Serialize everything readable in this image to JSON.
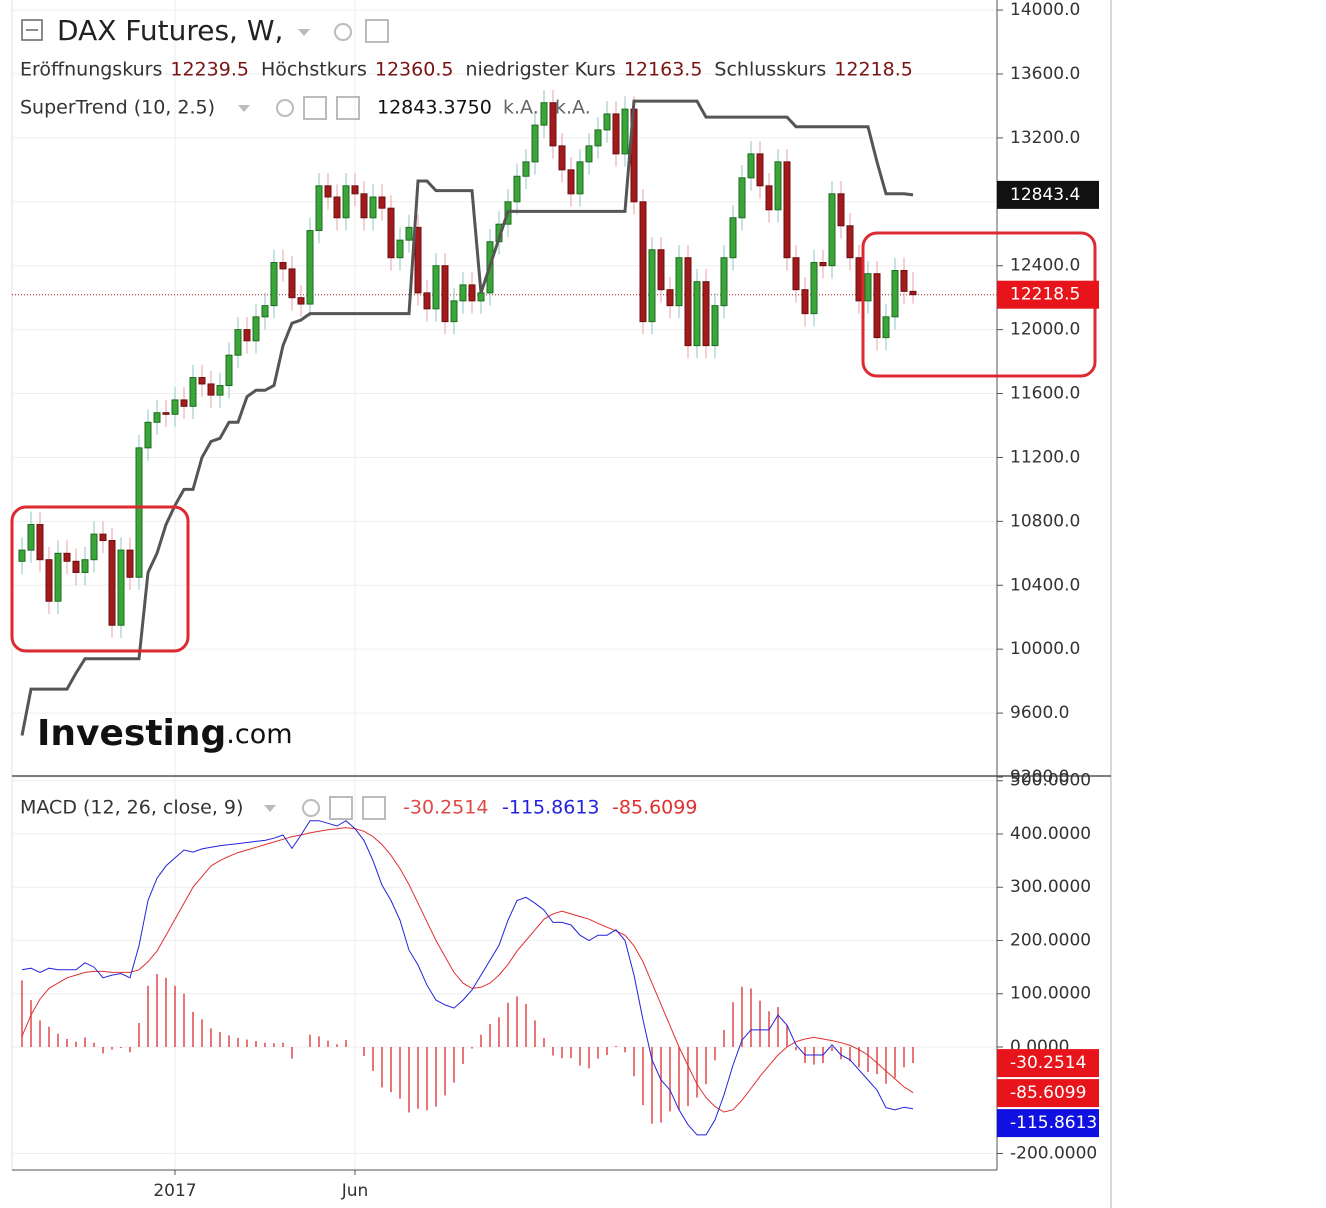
{
  "chart_data": {
    "type": "candlestick",
    "title": "DAX Futures, W,",
    "open_label": "Eröffnungskurs",
    "high_label": "Höchstkurs",
    "low_label": "niedrigster Kurs",
    "close_label": "Schlusskurs",
    "up_color": "#3aa63a",
    "down_color": "#a31a1d",
    "grid": true,
    "watermark": "Investing",
    "watermark_suffix": ".com",
    "categories": [
      null,
      null,
      null,
      null,
      null,
      null,
      null,
      null,
      null,
      null,
      null,
      null,
      null,
      null,
      null,
      null,
      null,
      "2017",
      null,
      null,
      null,
      null,
      null,
      null,
      null,
      null,
      null,
      null,
      null,
      null,
      null,
      null,
      null,
      null,
      null,
      null,
      null,
      "Jun",
      null,
      null,
      null,
      null,
      null,
      null,
      null,
      null,
      null,
      null,
      null,
      null,
      null,
      null,
      null,
      null,
      null,
      null,
      null,
      null,
      null,
      null,
      null,
      null,
      null,
      null,
      null,
      null,
      null,
      null,
      null,
      null,
      null,
      null,
      null,
      null,
      null,
      null,
      null,
      null,
      null,
      null,
      null,
      null,
      null,
      null,
      null,
      null,
      null,
      null,
      null,
      null,
      null,
      null,
      null,
      null,
      null,
      null,
      null,
      null,
      null,
      null
    ],
    "open": [
      10550,
      10620,
      10780,
      10560,
      10300,
      10600,
      10550,
      10480,
      10560,
      10720,
      10680,
      10150,
      10620,
      10450,
      11260,
      11420,
      11480,
      11470,
      11560,
      11520,
      11700,
      11660,
      11590,
      11650,
      11840,
      12000,
      11930,
      12080,
      12150,
      12420,
      12380,
      12200,
      12160,
      12620,
      12900,
      12830,
      12700,
      12900,
      12850,
      12700,
      12830,
      12760,
      12450,
      12560,
      12640,
      12230,
      12130,
      12400,
      12050,
      12180,
      12280,
      12180,
      12230,
      12550,
      12660,
      12800,
      12960,
      13050,
      13280,
      13420,
      13150,
      13000,
      12850,
      13050,
      13150,
      13250,
      13350,
      13100,
      13380,
      12800,
      12050,
      12500,
      12250,
      12150,
      12450,
      11900,
      12300,
      11900,
      12150,
      12450,
      12700,
      12950,
      13100,
      12900,
      12750,
      13050,
      12450,
      12250,
      12100,
      12420,
      12400,
      12850,
      12650,
      12450,
      12180,
      12350,
      11950,
      12080,
      12370,
      12239.5
    ],
    "high": [
      10700,
      10860,
      10860,
      10640,
      10680,
      10680,
      10630,
      10640,
      10800,
      10800,
      10760,
      10700,
      10700,
      11340,
      11500,
      11560,
      11560,
      11640,
      11640,
      11780,
      11780,
      11740,
      11730,
      11920,
      12080,
      12080,
      12160,
      12230,
      12500,
      12500,
      12460,
      12280,
      12700,
      12980,
      12980,
      12910,
      12980,
      12980,
      12930,
      12910,
      12910,
      12840,
      12640,
      12720,
      12720,
      12310,
      12480,
      12480,
      12260,
      12360,
      12360,
      12310,
      12630,
      12740,
      12880,
      13040,
      13130,
      13360,
      13500,
      13500,
      13230,
      13080,
      13130,
      13230,
      13330,
      13430,
      13430,
      13460,
      13460,
      12880,
      12580,
      12580,
      12330,
      12530,
      12530,
      12380,
      12380,
      12230,
      12530,
      12780,
      13030,
      13180,
      13180,
      12980,
      13130,
      13130,
      12530,
      12330,
      12500,
      12500,
      12930,
      12930,
      12730,
      12530,
      12430,
      12430,
      12160,
      12450,
      12450,
      12360.5
    ],
    "low": [
      10470,
      10540,
      10480,
      10220,
      10220,
      10470,
      10400,
      10400,
      10480,
      10600,
      10070,
      10070,
      10370,
      10370,
      11180,
      11340,
      11390,
      11390,
      11440,
      11440,
      11580,
      11510,
      11510,
      11570,
      11760,
      11850,
      11850,
      12000,
      12070,
      12300,
      12120,
      12080,
      12080,
      12540,
      12750,
      12620,
      12620,
      12770,
      12620,
      12620,
      12680,
      12370,
      12370,
      12480,
      12150,
      12050,
      12050,
      11970,
      11970,
      12100,
      12100,
      12100,
      12150,
      12470,
      12580,
      12720,
      12880,
      12970,
      13200,
      13070,
      12920,
      12770,
      12770,
      12970,
      13070,
      13170,
      13020,
      13020,
      12720,
      11970,
      11970,
      12170,
      12070,
      12070,
      11820,
      11820,
      11820,
      11820,
      12070,
      12370,
      12620,
      12870,
      12820,
      12670,
      12670,
      12370,
      12170,
      12020,
      12020,
      12320,
      12320,
      12570,
      12370,
      12100,
      12100,
      11870,
      11870,
      12000,
      12159.5,
      12163.5
    ],
    "close": [
      10620,
      10780,
      10560,
      10300,
      10600,
      10550,
      10480,
      10560,
      10720,
      10680,
      10150,
      10620,
      10450,
      11260,
      11420,
      11480,
      11470,
      11560,
      11520,
      11700,
      11660,
      11590,
      11650,
      11840,
      12000,
      11930,
      12080,
      12150,
      12420,
      12380,
      12200,
      12160,
      12620,
      12900,
      12830,
      12700,
      12900,
      12850,
      12700,
      12830,
      12760,
      12450,
      12560,
      12640,
      12230,
      12130,
      12400,
      12050,
      12180,
      12280,
      12180,
      12230,
      12550,
      12660,
      12800,
      12960,
      13050,
      13280,
      13420,
      13150,
      13000,
      12850,
      13050,
      13150,
      13250,
      13350,
      13100,
      13380,
      12800,
      12050,
      12500,
      12250,
      12150,
      12450,
      11900,
      12300,
      11900,
      12150,
      12450,
      12700,
      12950,
      13100,
      12900,
      12750,
      13050,
      12450,
      12250,
      12100,
      12420,
      12400,
      12850,
      12650,
      12450,
      12180,
      12350,
      11950,
      12080,
      12370,
      12239.5,
      12218.5
    ],
    "ylim": [
      9200,
      14063
    ],
    "yticks": [
      {
        "value": 9200,
        "label": "9200.0"
      },
      {
        "value": 9600,
        "label": "9600.0"
      },
      {
        "value": 10000,
        "label": "10000.0"
      },
      {
        "value": 10400,
        "label": "10400.0"
      },
      {
        "value": 10800,
        "label": "10800.0"
      },
      {
        "value": 11200,
        "label": "11200.0"
      },
      {
        "value": 11600,
        "label": "11600.0"
      },
      {
        "value": 12000,
        "label": "12000.0"
      },
      {
        "value": 12400,
        "label": "12400.0"
      },
      {
        "value": 12800,
        "label": "12800.0"
      },
      {
        "value": 13200,
        "label": "13200.0"
      },
      {
        "value": 13600,
        "label": "13600.0"
      },
      {
        "value": 14000,
        "label": "14000.0"
      }
    ],
    "supertrend": {
      "title": "SuperTrend (10, 2.5)",
      "color": "#555555",
      "values": [
        9460,
        9750,
        9750,
        9750,
        9750,
        9750,
        9850,
        9940,
        9940,
        9940,
        9940,
        9940,
        9940,
        9940,
        10480,
        10600,
        10780,
        10900,
        11000,
        11000,
        11200,
        11300,
        11320,
        11420,
        11420,
        11580,
        11620,
        11620,
        11650,
        11900,
        12040,
        12060,
        12100,
        12100,
        12100,
        12100,
        12100,
        12100,
        12100,
        12100,
        12100,
        12100,
        12100,
        12100,
        12930,
        12930,
        12870,
        12870,
        12870,
        12870,
        12870,
        12230,
        12400,
        12570,
        12740,
        12740,
        12740,
        12740,
        12740,
        12740,
        12740,
        12740,
        12740,
        12740,
        12740,
        12740,
        12740,
        12740,
        13430,
        13430,
        13430,
        13430,
        13430,
        13430,
        13430,
        13430,
        13330,
        13330,
        13330,
        13330,
        13330,
        13330,
        13330,
        13330,
        13330,
        13330,
        13270,
        13270,
        13270,
        13270,
        13270,
        13270,
        13270,
        13270,
        13270,
        13050,
        12850,
        12850,
        12850,
        12843.375
      ],
      "legend_value": "12843.3750",
      "flag": "12843.4",
      "na": [
        "k.A.",
        "k.A."
      ]
    },
    "macd_panel": {
      "title": "MACD (12, 26, close, 9)",
      "ylim": [
        -231,
        507
      ],
      "yticks": [
        {
          "value": -200,
          "label": "-200.0000"
        },
        {
          "value": 0,
          "label": "0.0000"
        },
        {
          "value": 100,
          "label": "100.0000"
        },
        {
          "value": 200,
          "label": "200.0000"
        },
        {
          "value": 300,
          "label": "300.0000"
        },
        {
          "value": 400,
          "label": "400.0000"
        },
        {
          "value": 500,
          "label": "500.0000"
        }
      ],
      "histogram": {
        "color": "#e04848",
        "values": [
          125,
          88,
          50,
          38,
          25,
          15,
          10,
          18,
          8,
          -12,
          -5,
          -2,
          -10,
          45,
          115,
          137,
          130,
          115,
          100,
          66,
          52,
          35,
          28,
          22,
          17,
          14,
          11,
          8,
          7,
          8,
          -22,
          0,
          23,
          20,
          12,
          5,
          13,
          0,
          -17,
          -45,
          -76,
          -85,
          -97,
          -123,
          -116,
          -119,
          -112,
          -91,
          -67,
          -32,
          -3,
          23,
          43,
          56,
          83,
          95,
          81,
          50,
          17,
          -16,
          -21,
          -21,
          -35,
          -40,
          -22,
          -15,
          2,
          -10,
          -55,
          -109,
          -144,
          -142,
          -121,
          -118,
          -111,
          -95,
          -70,
          -25,
          32,
          84,
          113,
          110,
          87,
          67,
          75,
          41,
          -6,
          -30,
          -33,
          -30,
          -8,
          -23,
          -27,
          -38,
          -47,
          -51,
          -69,
          -58,
          -38,
          -30.2514
        ]
      },
      "macd": {
        "color": "#2222dd",
        "values": [
          145,
          148,
          140,
          148,
          145,
          145,
          145,
          158,
          150,
          130,
          135,
          138,
          130,
          190,
          275,
          317,
          340,
          355,
          370,
          366,
          372,
          375,
          378,
          380,
          382,
          384,
          386,
          388,
          392,
          398,
          373,
          398,
          425,
          425,
          420,
          415,
          425,
          410,
          388,
          350,
          304,
          275,
          238,
          182,
          154,
          116,
          88,
          79,
          73,
          88,
          107,
          135,
          163,
          191,
          238,
          275,
          281,
          270,
          257,
          234,
          234,
          229,
          210,
          200,
          210,
          210,
          220,
          200,
          135,
          51,
          -24,
          -62,
          -81,
          -118,
          -146,
          -165,
          -165,
          -137,
          -90,
          -34,
          13,
          32,
          32,
          32,
          60,
          41,
          4,
          -15,
          -15,
          -15,
          4,
          -15,
          -24,
          -43,
          -62,
          -81,
          -114,
          -118,
          -113,
          -115.8613
        ]
      },
      "signal": {
        "color": "#e03030",
        "values": [
          20,
          60,
          90,
          110,
          120,
          130,
          135,
          140,
          142,
          142,
          140,
          140,
          140,
          145,
          160,
          180,
          210,
          240,
          270,
          300,
          320,
          340,
          350,
          358,
          365,
          370,
          375,
          380,
          385,
          390,
          395,
          398,
          402,
          405,
          408,
          410,
          412,
          410,
          405,
          395,
          380,
          360,
          335,
          305,
          270,
          235,
          200,
          170,
          140,
          120,
          110,
          112,
          120,
          135,
          155,
          180,
          200,
          220,
          240,
          250,
          255,
          250,
          245,
          240,
          232,
          225,
          218,
          210,
          190,
          160,
          120,
          80,
          40,
          0,
          -35,
          -70,
          -95,
          -112,
          -122,
          -118,
          -100,
          -78,
          -55,
          -35,
          -15,
          0,
          10,
          15,
          18,
          15,
          12,
          8,
          3,
          -5,
          -15,
          -30,
          -45,
          -60,
          -75,
          -85.6099
        ]
      }
    }
  }
}
